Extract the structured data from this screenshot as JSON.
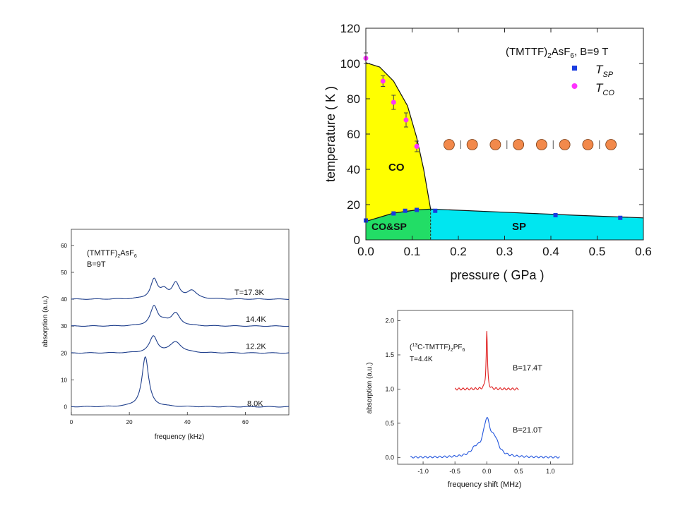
{
  "chart_data": [
    {
      "type": "line",
      "panel": "left",
      "xlabel": "frequency (kHz)",
      "ylabel": "absorption (a.u.)",
      "xlim": [
        0,
        75
      ],
      "ylim": [
        -3,
        66
      ],
      "xticks": [
        "0",
        "20",
        "40",
        "60"
      ],
      "yticks": [
        "0",
        "10",
        "20",
        "30",
        "40",
        "50",
        "60"
      ],
      "annotation_compound": "(TMTTF)",
      "annotation_sub": "2",
      "annotation_anion": "AsF",
      "annotation_anion_sub": "6",
      "annotation_field": "B=9T",
      "line_color": "#1f3f8c",
      "series": [
        {
          "label": "T=17.3K",
          "offset": 40,
          "peaks": [
            {
              "center": 28.5,
              "height": 7,
              "width": 1.4
            },
            {
              "center": 32,
              "height": 3,
              "width": 1.6
            },
            {
              "center": 36,
              "height": 5.5,
              "width": 1.5
            },
            {
              "center": 41.5,
              "height": 3,
              "width": 2.0
            }
          ]
        },
        {
          "label": "14.4K",
          "offset": 30,
          "peaks": [
            {
              "center": 28.5,
              "height": 7,
              "width": 1.5
            },
            {
              "center": 32,
              "height": 1.5,
              "width": 2.0
            },
            {
              "center": 36,
              "height": 4.5,
              "width": 1.8
            }
          ]
        },
        {
          "label": "12.2K",
          "offset": 20,
          "peaks": [
            {
              "center": 28.3,
              "height": 6,
              "width": 1.6
            },
            {
              "center": 36,
              "height": 4,
              "width": 2.4
            }
          ]
        },
        {
          "label": "8.0K",
          "offset": 0,
          "peaks": [
            {
              "center": 25.5,
              "height": 18.5,
              "width": 1.4
            }
          ]
        }
      ]
    },
    {
      "type": "scatter",
      "panel": "top-right",
      "title_compound": "(TMTTF)",
      "title_sub": "2",
      "title_anion": "AsF",
      "title_anion_sub": "6",
      "title_field": ", B=9 T",
      "xlabel": "pressure ( GPa )",
      "ylabel": "temperature ( K )",
      "xlim": [
        0,
        0.6
      ],
      "ylim": [
        0,
        120
      ],
      "xticks": [
        "0.0",
        "0.1",
        "0.2",
        "0.3",
        "0.4",
        "0.5",
        "0.6"
      ],
      "yticks": [
        "0",
        "20",
        "40",
        "60",
        "80",
        "100",
        "120"
      ],
      "legend": [
        {
          "label": "T",
          "sub": "SP",
          "color": "#1a3ce0",
          "marker": "square"
        },
        {
          "label": "T",
          "sub": "CO",
          "color": "#ff33ff",
          "marker": "circle"
        }
      ],
      "legend_position": "top-right",
      "regions": [
        {
          "label": "CO",
          "color": "#ffff00"
        },
        {
          "label": "CO&SP",
          "color": "#22dd66"
        },
        {
          "label": "SP",
          "color": "#00e6f0"
        }
      ],
      "tco_points": [
        {
          "x": 0.0,
          "y": 103,
          "err": 3
        },
        {
          "x": 0.037,
          "y": 90,
          "err": 3
        },
        {
          "x": 0.06,
          "y": 78,
          "err": 4
        },
        {
          "x": 0.087,
          "y": 68,
          "err": 4
        },
        {
          "x": 0.11,
          "y": 53,
          "err": 3
        }
      ],
      "tsp_points": [
        {
          "x": 0.0,
          "y": 11
        },
        {
          "x": 0.06,
          "y": 15
        },
        {
          "x": 0.085,
          "y": 16.5
        },
        {
          "x": 0.11,
          "y": 17
        },
        {
          "x": 0.15,
          "y": 16.5
        },
        {
          "x": 0.41,
          "y": 14
        },
        {
          "x": 0.55,
          "y": 12.5
        }
      ],
      "co_boundary": [
        [
          0.0,
          100.5
        ],
        [
          0.03,
          98
        ],
        [
          0.06,
          90
        ],
        [
          0.09,
          76
        ],
        [
          0.11,
          58
        ],
        [
          0.125,
          40
        ],
        [
          0.14,
          17.5
        ]
      ],
      "sp_boundary": [
        [
          0.0,
          10.5
        ],
        [
          0.06,
          15.2
        ],
        [
          0.11,
          17
        ],
        [
          0.14,
          17.5
        ],
        [
          0.3,
          15.7
        ],
        [
          0.45,
          14
        ],
        [
          0.6,
          12.5
        ]
      ],
      "circle_row": {
        "y": 54,
        "x": [
          0.18,
          0.23,
          0.28,
          0.33,
          0.38,
          0.43,
          0.48,
          0.53
        ],
        "color": "#f2894b"
      }
    },
    {
      "type": "line",
      "panel": "bottom-right",
      "xlabel": "frequency shift (MHz)",
      "ylabel": "absorption (a.u.)",
      "xlim": [
        -1.4,
        1.35
      ],
      "ylim": [
        -0.1,
        2.15
      ],
      "xticks": [
        "-1.0",
        "-0.5",
        "0.0",
        "0.5",
        "1.0"
      ],
      "yticks": [
        "0.0",
        "0.5",
        "1.0",
        "1.5",
        "2.0"
      ],
      "annotation_pre": "(",
      "annotation_iso": "13",
      "annotation_compound": "C-TMTTF)",
      "annotation_sub": "2",
      "annotation_anion": "PF",
      "annotation_anion_sub": "6",
      "annotation_temp": "T=4.4K",
      "series": [
        {
          "label": "B=17.4T",
          "color": "#e02020",
          "offset": 1.0,
          "x_range": [
            -0.5,
            0.5
          ]
        },
        {
          "label": "B=21.0T",
          "color": "#2255dd",
          "offset": 0.0,
          "x_range": [
            -1.2,
            1.15
          ]
        }
      ]
    }
  ]
}
